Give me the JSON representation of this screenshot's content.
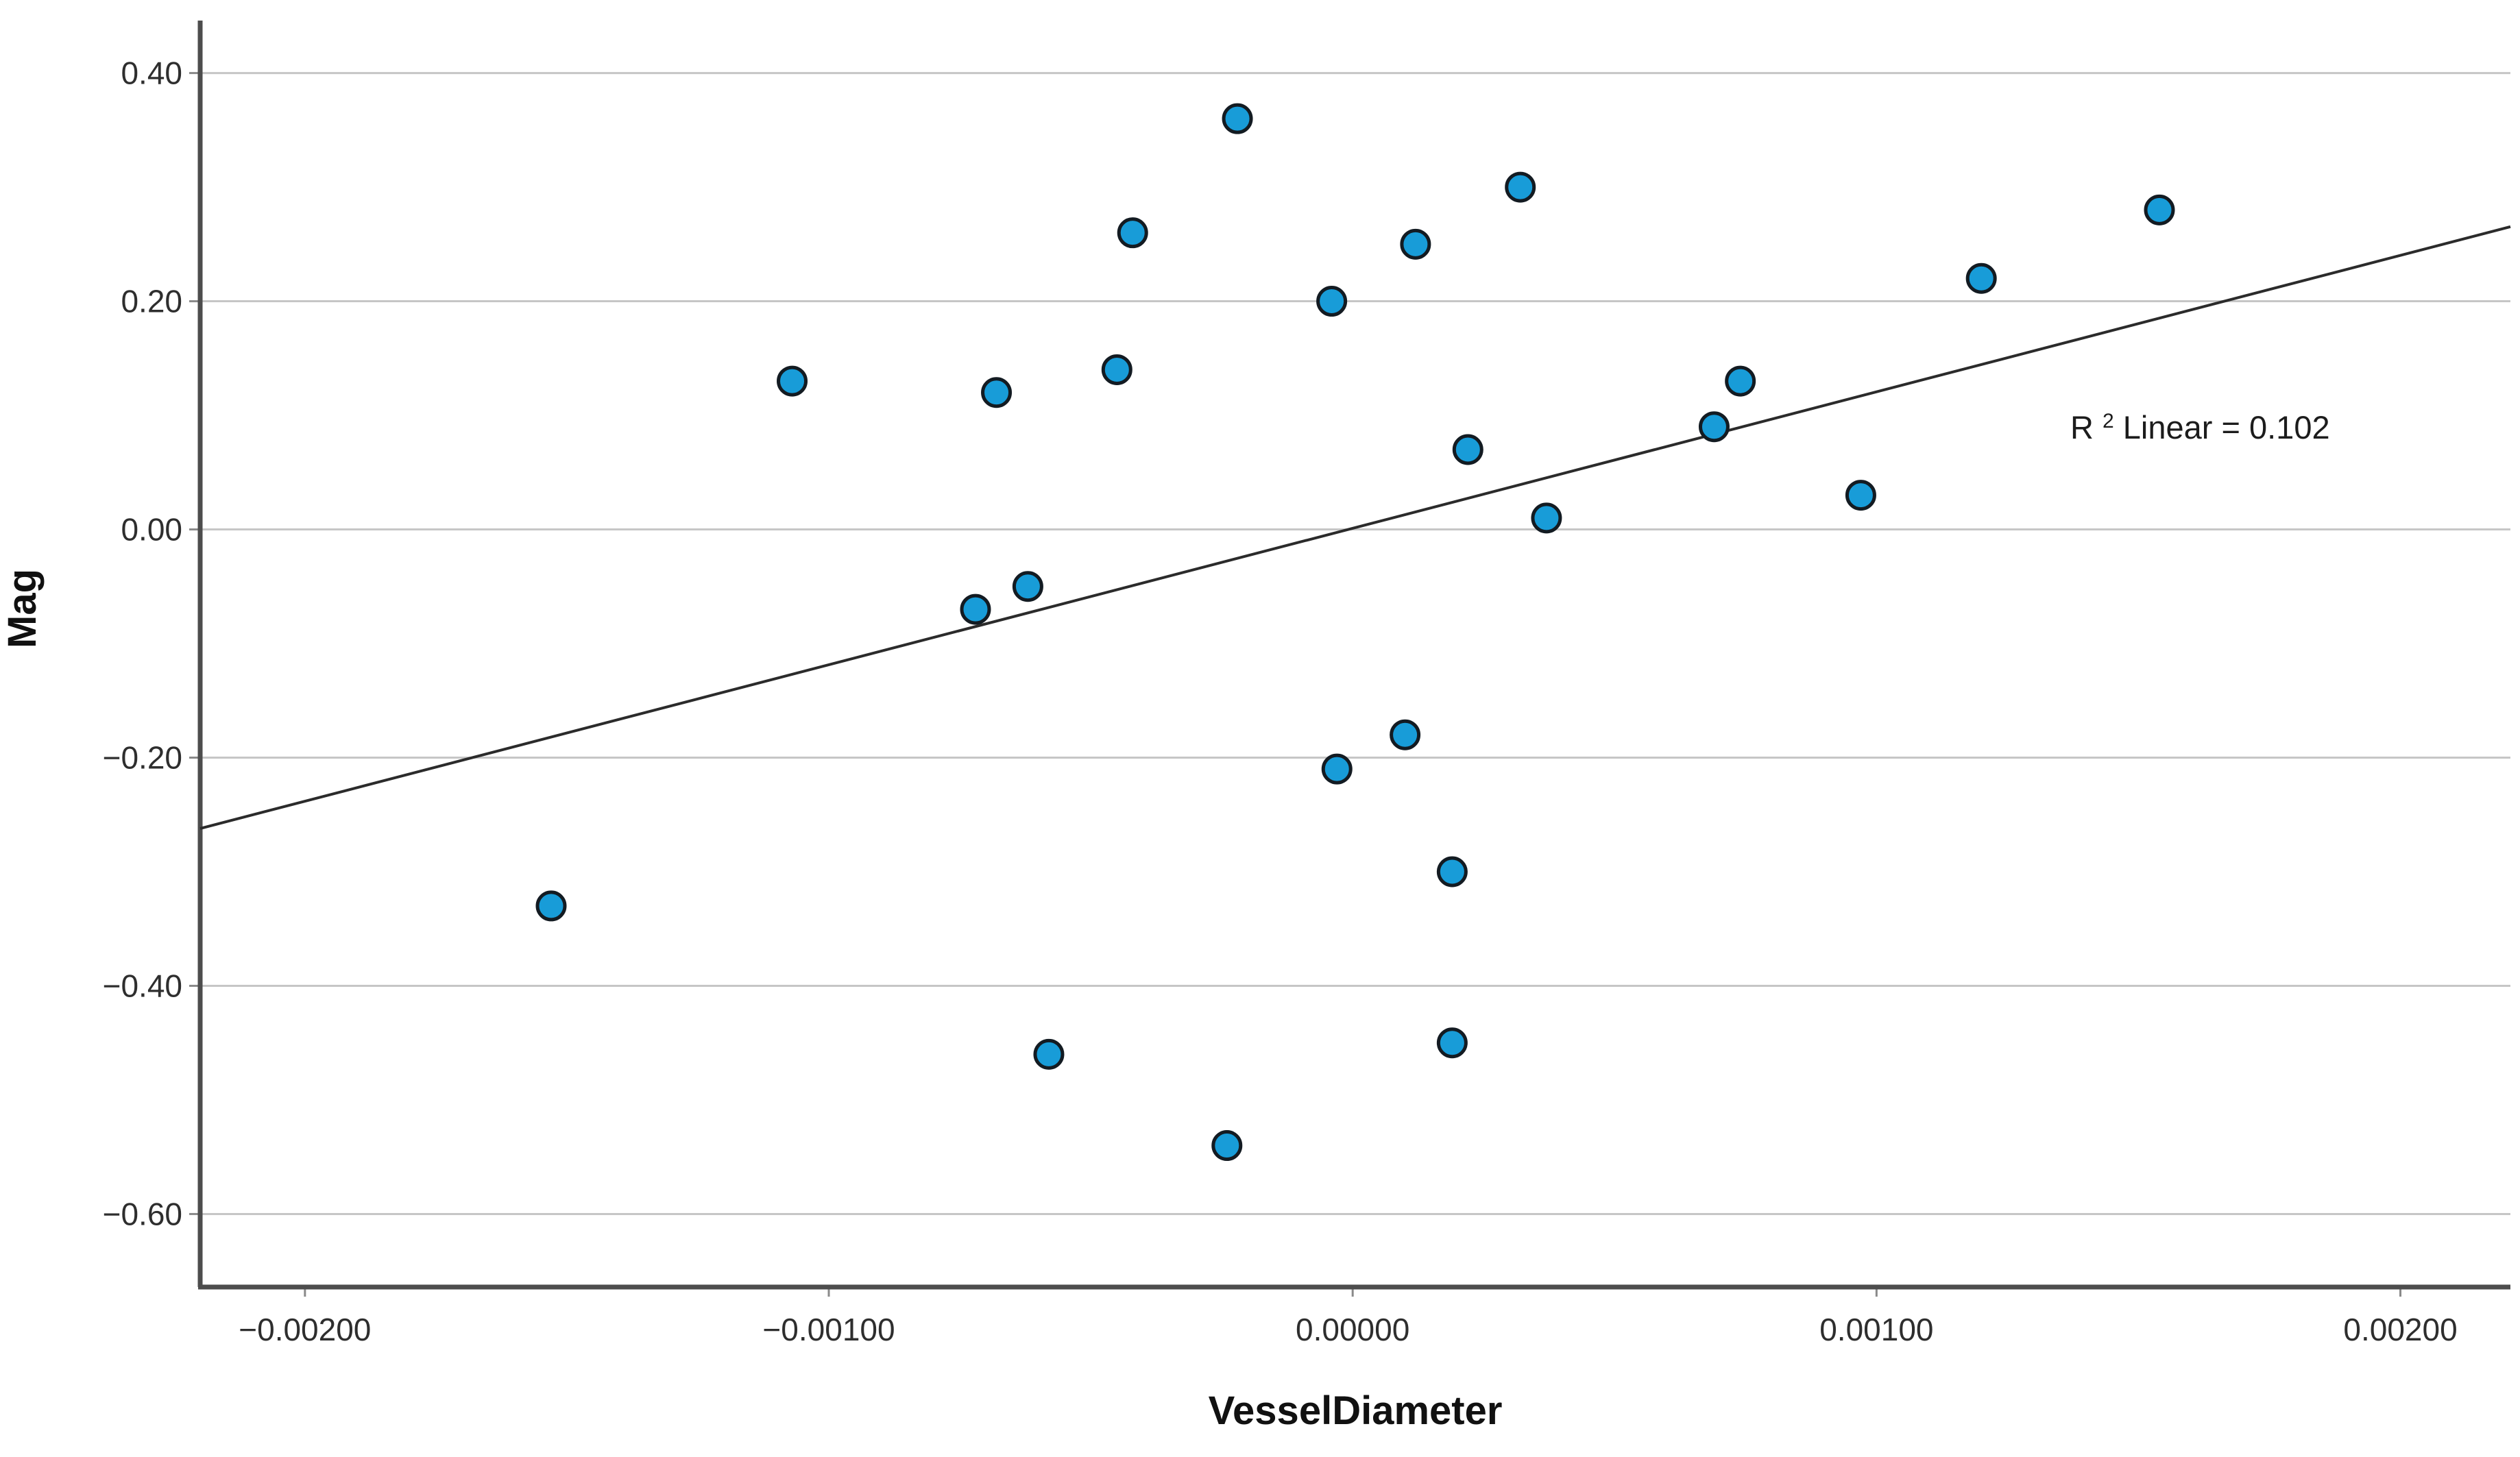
{
  "chart_data": {
    "type": "scatter",
    "title": "",
    "xlabel": "VesselDiameter",
    "ylabel": "Mag",
    "legend": "none",
    "grid": "horizontal-only",
    "xlim": [
      -0.0022,
      0.00221
    ],
    "ylim": [
      -0.664,
      0.446
    ],
    "x_ticks": [
      {
        "value": -0.002,
        "label": "−0.00200"
      },
      {
        "value": -0.001,
        "label": "−0.00100"
      },
      {
        "value": 0.0,
        "label": "0.00000"
      },
      {
        "value": 0.001,
        "label": "0.00100"
      },
      {
        "value": 0.002,
        "label": "0.00200"
      }
    ],
    "y_ticks": [
      {
        "value": 0.4,
        "label": "0.40"
      },
      {
        "value": 0.2,
        "label": "0.20"
      },
      {
        "value": 0.0,
        "label": "0.00"
      },
      {
        "value": -0.2,
        "label": "−0.20"
      },
      {
        "value": -0.4,
        "label": "−0.40"
      },
      {
        "value": -0.6,
        "label": "−0.60"
      }
    ],
    "points": [
      {
        "x": -0.00153,
        "y": -0.33
      },
      {
        "x": -0.00107,
        "y": 0.13
      },
      {
        "x": -0.00072,
        "y": -0.07
      },
      {
        "x": -0.00068,
        "y": 0.12
      },
      {
        "x": -0.00062,
        "y": -0.05
      },
      {
        "x": -0.00058,
        "y": -0.46
      },
      {
        "x": -0.00045,
        "y": 0.14
      },
      {
        "x": -0.00042,
        "y": 0.26
      },
      {
        "x": -0.00024,
        "y": -0.54
      },
      {
        "x": -0.00022,
        "y": 0.36
      },
      {
        "x": -4e-05,
        "y": 0.2
      },
      {
        "x": -3e-05,
        "y": -0.21
      },
      {
        "x": 0.0001,
        "y": -0.18
      },
      {
        "x": 0.00012,
        "y": 0.25
      },
      {
        "x": 0.00019,
        "y": -0.3
      },
      {
        "x": 0.00019,
        "y": -0.45
      },
      {
        "x": 0.00022,
        "y": 0.07
      },
      {
        "x": 0.00032,
        "y": 0.3
      },
      {
        "x": 0.00037,
        "y": 0.01
      },
      {
        "x": 0.00069,
        "y": 0.09
      },
      {
        "x": 0.00074,
        "y": 0.13
      },
      {
        "x": 0.00097,
        "y": 0.03
      },
      {
        "x": 0.0012,
        "y": 0.22
      },
      {
        "x": 0.00154,
        "y": 0.28
      }
    ],
    "fit_line": {
      "slope": 119.6,
      "intercept": 0.001
    },
    "annotation": {
      "r": "R",
      "sup": "2",
      "rest": "  Linear = 0.102"
    },
    "r_squared": 0.102,
    "colors": {
      "point_fill": "#189CD8",
      "point_stroke": "#131b22",
      "gridline": "#c6c6c6",
      "axis_line": "#4d4d4d",
      "fit_line": "#2b2b2b",
      "tick_mark": "#8a8a8a",
      "background": "#ffffff"
    }
  }
}
